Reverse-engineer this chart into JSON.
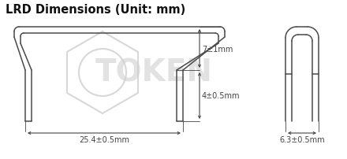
{
  "title": "LRD Dimensions (Unit: mm)",
  "title_fontsize": 10.5,
  "bg_color": "#ffffff",
  "line_color": "#4a4a4a",
  "dim_label_7": "7±1mm",
  "dim_label_4": "4±0.5mm",
  "dim_label_25": "25.4±0.5mm",
  "dim_label_63": "6.3±0.5mm",
  "lw": 1.1
}
